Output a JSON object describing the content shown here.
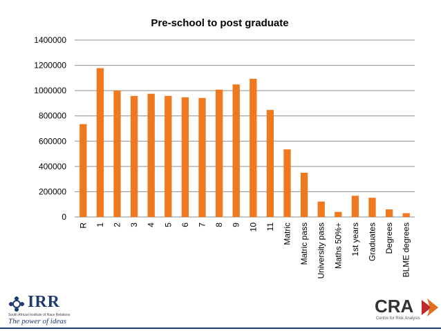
{
  "chart_data": {
    "type": "bar",
    "title": "Pre-school to post graduate",
    "categories": [
      "R",
      "1",
      "2",
      "3",
      "4",
      "5",
      "6",
      "7",
      "8",
      "9",
      "10",
      "11",
      "Matric",
      "Matric pass",
      "University pass",
      "Maths 50%+",
      "1st years",
      "Graduates",
      "Degrees",
      "BLME degrees"
    ],
    "values": [
      735000,
      1178000,
      1000000,
      958000,
      975000,
      958000,
      947000,
      942000,
      1008000,
      1049000,
      1094000,
      847000,
      535000,
      350000,
      122000,
      40000,
      168000,
      152000,
      60000,
      30000
    ],
    "yticks": [
      "0",
      "200000",
      "400000",
      "600000",
      "800000",
      "1000000",
      "1200000",
      "1400000"
    ],
    "ylim": [
      0,
      1400000
    ],
    "xlabel": "",
    "ylabel": "",
    "grid": true,
    "bar_color": "#f07920",
    "gridline_color": "#8c8c8c"
  },
  "footer": {
    "irr_logo_text": "IRR",
    "irr_subtitle": "South African Institute of Race Relations",
    "irr_tagline": "The power of ideas",
    "cra_logo_text": "CRA",
    "cra_subtitle": "Centre for Risk Analysis",
    "brand_navy": "#1f3a70",
    "cra_accent": "#c0282d"
  }
}
